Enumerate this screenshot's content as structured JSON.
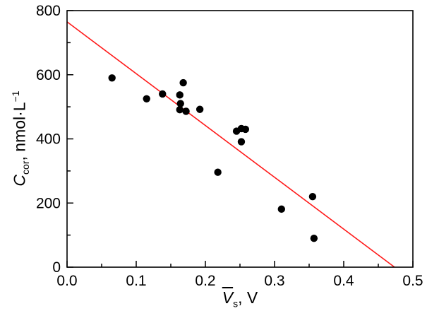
{
  "axes": {
    "y_label": {
      "var": "C",
      "var_sub": "cor",
      "unit": ", nmol·L",
      "unit_sup": "−1"
    },
    "x_label": {
      "var": "V",
      "var_sub": "s",
      "unit": ", V"
    }
  },
  "chart_data": {
    "type": "scatter",
    "title": "",
    "xlabel": "V̄s, V",
    "ylabel": "Ccor, nmol·L−1",
    "xlim": [
      0.0,
      0.5
    ],
    "ylim": [
      0,
      800
    ],
    "x_ticks": [
      0.0,
      0.1,
      0.2,
      0.3,
      0.4,
      0.5
    ],
    "x_tick_labels": [
      "0.0",
      "0.1",
      "0.2",
      "0.3",
      "0.4",
      "0.5"
    ],
    "y_ticks": [
      0,
      200,
      400,
      600,
      800
    ],
    "y_tick_labels": [
      "0",
      "200",
      "400",
      "600",
      "800"
    ],
    "x_minor_step": 0.05,
    "y_minor_step": 100,
    "grid": false,
    "legend": null,
    "point_color": "#000000",
    "points": [
      [
        0.065,
        590
      ],
      [
        0.115,
        525
      ],
      [
        0.138,
        540
      ],
      [
        0.163,
        537
      ],
      [
        0.168,
        575
      ],
      [
        0.164,
        510
      ],
      [
        0.163,
        491
      ],
      [
        0.172,
        486
      ],
      [
        0.192,
        492
      ],
      [
        0.218,
        296
      ],
      [
        0.245,
        424
      ],
      [
        0.252,
        432
      ],
      [
        0.258,
        430
      ],
      [
        0.252,
        391
      ],
      [
        0.31,
        181
      ],
      [
        0.355,
        220
      ],
      [
        0.357,
        90
      ]
    ],
    "fit_line": {
      "x1": 0.0,
      "y1": 765,
      "x2": 0.4735,
      "y2": 0,
      "color": "#ff1a1a"
    }
  }
}
